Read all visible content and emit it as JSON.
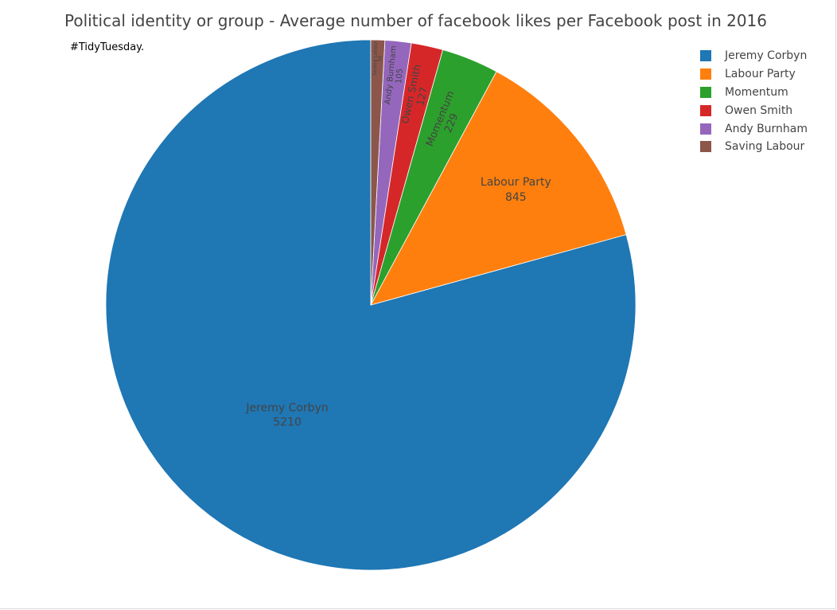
{
  "chart_data": {
    "type": "pie",
    "title": "Political identity or group - Average number of facebook likes per Facebook post in 2016",
    "annotation": "#TidyTuesday.",
    "slices": [
      {
        "label": "Jeremy Corbyn",
        "value": 5210,
        "color": "#1f77b4"
      },
      {
        "label": "Labour Party",
        "value": 845,
        "color": "#ff7f0e"
      },
      {
        "label": "Momentum",
        "value": 229,
        "color": "#2ca02c"
      },
      {
        "label": "Owen Smith",
        "value": 127,
        "color": "#d62728"
      },
      {
        "label": "Andy Burnham",
        "value": 105,
        "color": "#9467bd"
      },
      {
        "label": "Saving Labour",
        "value": 56,
        "color": "#8c564b"
      }
    ],
    "legend_position": "top-right",
    "direction": "counterclockwise",
    "start_angle": "12 o'clock"
  }
}
